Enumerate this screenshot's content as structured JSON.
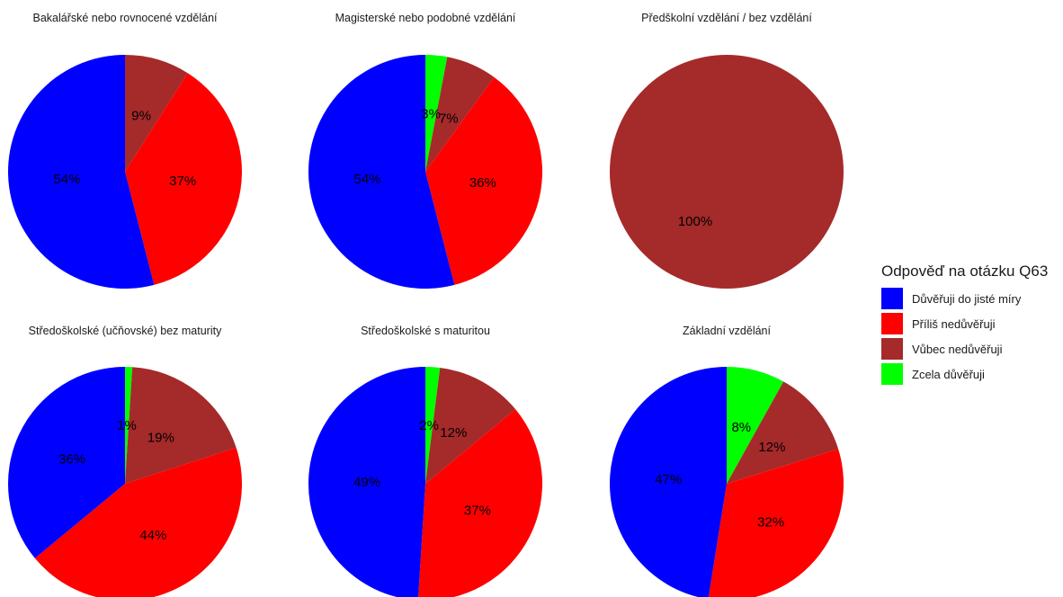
{
  "chart_data": {
    "type": "pie",
    "legend": {
      "title": "Odpověď na otázku Q63",
      "position": "right",
      "entries": [
        {
          "name": "Důvěřuji do jisté míry",
          "color": "#0000ff"
        },
        {
          "name": "Příliš nedůvěřuji",
          "color": "#ff0000"
        },
        {
          "name": "Vůbec nedůvěřuji",
          "color": "#a52a2a"
        },
        {
          "name": "Zcela důvěřuji",
          "color": "#00ff00"
        }
      ]
    },
    "panels": [
      {
        "title": "Bakalářské nebo rovnocené vzdělání",
        "slices": [
          {
            "category": "Vůbec nedůvěřuji",
            "value": 9,
            "label": "9%"
          },
          {
            "category": "Příliš nedůvěřuji",
            "value": 37,
            "label": "37%"
          },
          {
            "category": "Důvěřuji do jisté míry",
            "value": 54,
            "label": "54%"
          }
        ]
      },
      {
        "title": "Magisterské nebo podobné vzdělání",
        "slices": [
          {
            "category": "Zcela důvěřuji",
            "value": 3,
            "label": "3%"
          },
          {
            "category": "Vůbec nedůvěřuji",
            "value": 7,
            "label": "7%"
          },
          {
            "category": "Příliš nedůvěřuji",
            "value": 36,
            "label": "36%"
          },
          {
            "category": "Důvěřuji do jisté míry",
            "value": 54,
            "label": "54%"
          }
        ]
      },
      {
        "title": "Předškolní vzdělání / bez vzdělání",
        "slices": [
          {
            "category": "Vůbec nedůvěřuji",
            "value": 100,
            "label": "100%"
          }
        ]
      },
      {
        "title": "Středoškolské (učňovské) bez maturity",
        "slices": [
          {
            "category": "Zcela důvěřuji",
            "value": 1,
            "label": "1%"
          },
          {
            "category": "Vůbec nedůvěřuji",
            "value": 19,
            "label": "19%"
          },
          {
            "category": "Příliš nedůvěřuji",
            "value": 44,
            "label": "44%"
          },
          {
            "category": "Důvěřuji do jisté míry",
            "value": 36,
            "label": "36%"
          }
        ]
      },
      {
        "title": "Středoškolské s maturitou",
        "slices": [
          {
            "category": "Zcela důvěřuji",
            "value": 2,
            "label": "2%"
          },
          {
            "category": "Vůbec nedůvěřuji",
            "value": 12,
            "label": "12%"
          },
          {
            "category": "Příliš nedůvěřuji",
            "value": 37,
            "label": "37%"
          },
          {
            "category": "Důvěřuji do jisté míry",
            "value": 49,
            "label": "49%"
          }
        ]
      },
      {
        "title": "Základní vzdělání",
        "slices": [
          {
            "category": "Zcela důvěřuji",
            "value": 8,
            "label": "8%"
          },
          {
            "category": "Vůbec nedůvěřuji",
            "value": 12,
            "label": "12%"
          },
          {
            "category": "Příliš nedůvěřuji",
            "value": 32,
            "label": "32%"
          },
          {
            "category": "Důvěřuji do jisté míry",
            "value": 47,
            "label": "47%"
          }
        ]
      }
    ]
  }
}
